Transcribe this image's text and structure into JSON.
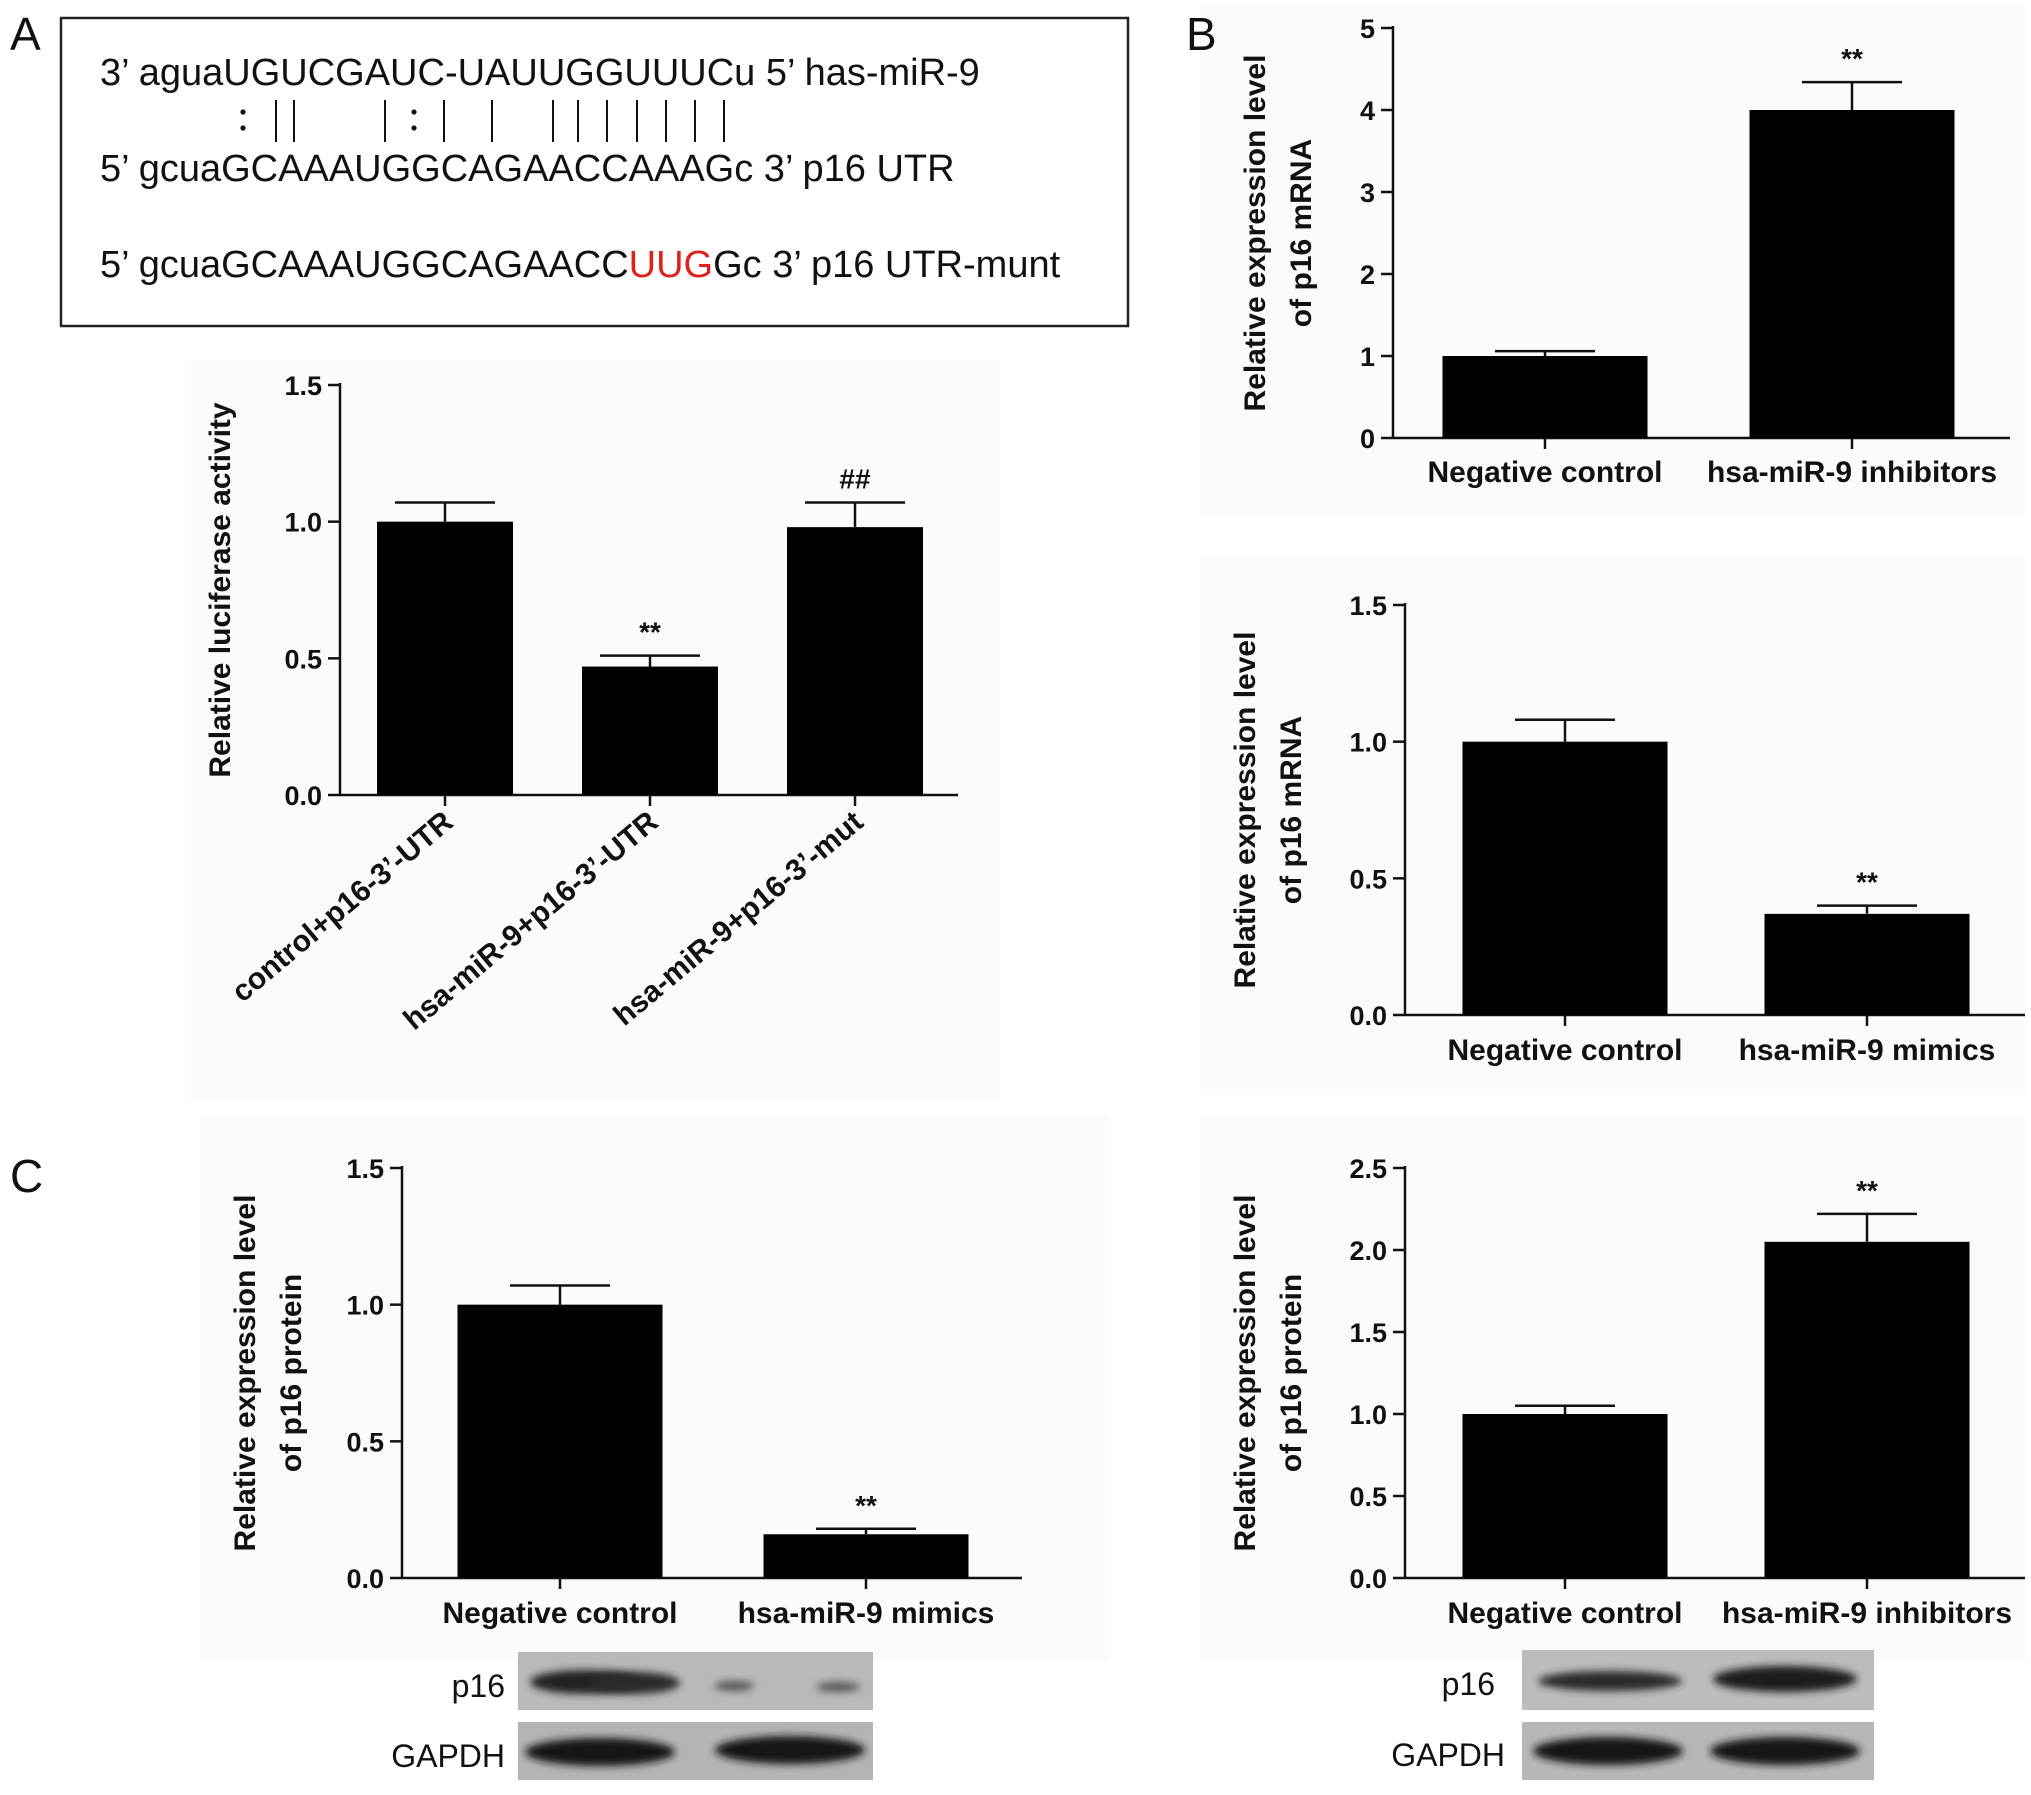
{
  "panels": {
    "a": "A",
    "b": "B",
    "c": "C"
  },
  "sequences": {
    "line1": {
      "prefix": "3’ agua",
      "core": "UGUCGAUC-UAUUGGUUUC",
      "suffix": "u 5’ has-miR-9"
    },
    "line2": {
      "prefix": "5’ gcua",
      "core": "GCAAAUGGCAGAACCAAAG",
      "suffix": "c 3’ p16 UTR"
    },
    "line3": {
      "prefix": "5’ gcuaGCAAAUGGCAGAACC",
      "mutant": "UUG",
      "suffix": "Gc 3’ p16 UTR-munt"
    },
    "pairing_marks": [
      ":",
      "|",
      "|",
      "|",
      ":",
      "|",
      "|",
      "|",
      "|",
      "|",
      "|",
      "|",
      "|",
      "|"
    ]
  },
  "chart_data": [
    {
      "id": "luciferase",
      "type": "bar",
      "categories": [
        "control+p16-3’-UTR",
        "hsa-miR-9+p16-3’-UTR",
        "hsa-miR-9+p16-3’-mut"
      ],
      "values": [
        1.0,
        0.47,
        0.98
      ],
      "errors": [
        0.07,
        0.04,
        0.09
      ],
      "annotations": [
        "",
        "**",
        "##"
      ],
      "ylabel": "Relative luciferase activity",
      "ylim": [
        0,
        1.5
      ],
      "yticks": [
        "0.0",
        "0.5",
        "1.0",
        "1.5"
      ],
      "ytick_values": [
        0,
        0.5,
        1.0,
        1.5
      ],
      "rotated_categories": true,
      "grid": false
    },
    {
      "id": "mrna-inhibitors",
      "type": "bar",
      "categories": [
        "Negative control",
        "hsa-miR-9 inhibitors"
      ],
      "values": [
        1.0,
        4.0
      ],
      "errors": [
        0.06,
        0.34
      ],
      "annotations": [
        "",
        "**"
      ],
      "ylabel": [
        "Relative expression level",
        "of p16 mRNA"
      ],
      "ylim": [
        0,
        5
      ],
      "yticks": [
        "0",
        "1",
        "2",
        "3",
        "4",
        "5"
      ],
      "ytick_values": [
        0,
        1,
        2,
        3,
        4,
        5
      ],
      "grid": false
    },
    {
      "id": "mrna-mimics",
      "type": "bar",
      "categories": [
        "Negative control",
        "hsa-miR-9 mimics"
      ],
      "values": [
        1.0,
        0.37
      ],
      "errors": [
        0.08,
        0.03
      ],
      "annotations": [
        "",
        "**"
      ],
      "ylabel": [
        "Relative expression level",
        "of p16 mRNA"
      ],
      "ylim": [
        0,
        1.5
      ],
      "yticks": [
        "0.0",
        "0.5",
        "1.0",
        "1.5"
      ],
      "ytick_values": [
        0,
        0.5,
        1.0,
        1.5
      ],
      "grid": false
    },
    {
      "id": "protein-mimics",
      "type": "bar",
      "categories": [
        "Negative control",
        "hsa-miR-9 mimics"
      ],
      "values": [
        1.0,
        0.16
      ],
      "errors": [
        0.07,
        0.02
      ],
      "annotations": [
        "",
        "**"
      ],
      "ylabel": [
        "Relative expression level",
        "of p16 protein"
      ],
      "ylim": [
        0,
        1.5
      ],
      "yticks": [
        "0.0",
        "0.5",
        "1.0",
        "1.5"
      ],
      "ytick_values": [
        0,
        0.5,
        1.0,
        1.5
      ],
      "grid": false
    },
    {
      "id": "protein-inhibitors",
      "type": "bar",
      "categories": [
        "Negative control",
        "hsa-miR-9 inhibitors"
      ],
      "values": [
        1.0,
        2.05
      ],
      "errors": [
        0.05,
        0.17
      ],
      "annotations": [
        "",
        "**"
      ],
      "ylabel": [
        "Relative expression level",
        "of p16 protein"
      ],
      "ylim": [
        0,
        2.5
      ],
      "yticks": [
        "0.0",
        "0.5",
        "1.0",
        "1.5",
        "2.0",
        "2.5"
      ],
      "ytick_values": [
        0,
        0.5,
        1.0,
        1.5,
        2.0,
        2.5
      ],
      "grid": false
    }
  ],
  "blots": {
    "left": {
      "rows": [
        "p16",
        "GAPDH"
      ]
    },
    "right": {
      "rows": [
        "p16",
        "GAPDH"
      ]
    }
  },
  "colors": {
    "bar": "#000000",
    "mutant_text": "#e0201b"
  }
}
